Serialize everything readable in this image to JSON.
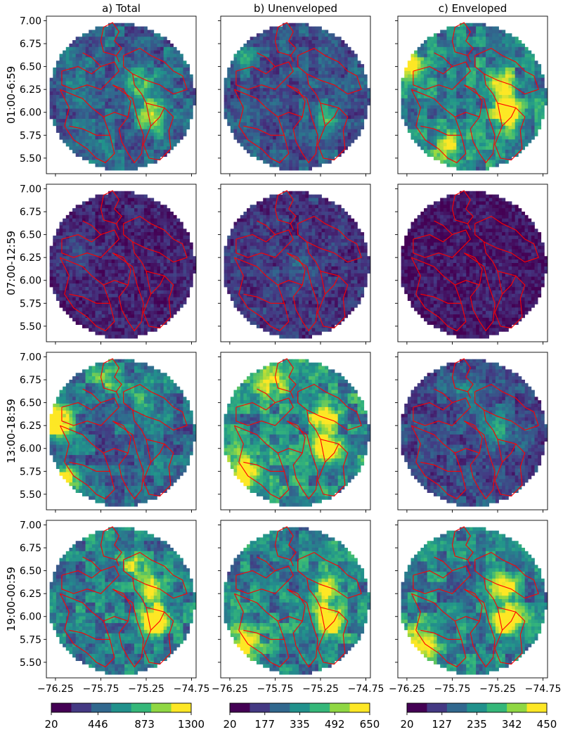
{
  "chart_data": {
    "type": "heatmap",
    "column_titles": [
      "a) Total",
      "b) Unenveloped",
      "c) Enveloped"
    ],
    "row_labels": [
      "01:00-6:59",
      "07:00-12:59",
      "13:00-18:59",
      "19:00-00:59"
    ],
    "x_ticks": [
      "−76.25",
      "−75.75",
      "−75.25",
      "−74.75"
    ],
    "x_tick_values": [
      -76.25,
      -75.75,
      -75.25,
      -74.75
    ],
    "y_ticks": [
      "7.00",
      "6.75",
      "6.50",
      "6.25",
      "6.00",
      "5.75",
      "5.50"
    ],
    "y_tick_values": [
      7.0,
      6.75,
      6.5,
      6.25,
      6.0,
      5.75,
      5.5
    ],
    "xlim": [
      -76.35,
      -74.7
    ],
    "ylim": [
      5.33,
      7.05
    ],
    "radar_center": [
      -75.52,
      6.17
    ],
    "colormap": [
      "#440154",
      "#443983",
      "#31688e",
      "#21918c",
      "#35b779",
      "#90d743",
      "#fde725"
    ],
    "boundary_color": "#ff0000",
    "colorbars": [
      {
        "ticks": [
          "20",
          "446",
          "873",
          "1300"
        ],
        "vmin": 20,
        "vmax": 1300
      },
      {
        "ticks": [
          "20",
          "177",
          "335",
          "492",
          "650"
        ],
        "vmin": 20,
        "vmax": 650
      },
      {
        "ticks": [
          "20",
          "127",
          "235",
          "342",
          "450"
        ],
        "vmin": 20,
        "vmax": 450
      }
    ],
    "panel_level": [
      [
        0.32,
        0.26,
        0.45
      ],
      [
        0.1,
        0.16,
        0.06
      ],
      [
        0.34,
        0.48,
        0.22
      ],
      [
        0.42,
        0.44,
        0.44
      ]
    ],
    "hotspots": [
      [
        [
          [
            -75.18,
            5.95,
            0.25,
            0.6
          ],
          [
            -75.3,
            6.3,
            0.25,
            0.4
          ]
        ],
        [
          [
            -75.18,
            5.95,
            0.2,
            0.4
          ],
          [
            -76.1,
            6.6,
            0.2,
            0.3
          ]
        ],
        [
          [
            -75.15,
            6.0,
            0.22,
            1.0
          ],
          [
            -75.2,
            6.3,
            0.2,
            0.7
          ],
          [
            -76.2,
            6.5,
            0.2,
            0.6
          ],
          [
            -75.8,
            5.6,
            0.25,
            0.5
          ]
        ]
      ],
      [
        [
          [
            -76.0,
            6.3,
            0.3,
            0.15
          ]
        ],
        [
          [
            -75.5,
            6.1,
            0.3,
            0.15
          ]
        ],
        [
          [
            -75.3,
            5.8,
            0.3,
            0.05
          ]
        ]
      ],
      [
        [
          [
            -76.25,
            6.3,
            0.25,
            1.0
          ],
          [
            -76.15,
            5.65,
            0.2,
            1.0
          ],
          [
            -75.7,
            6.8,
            0.25,
            0.5
          ],
          [
            -75.25,
            6.6,
            0.3,
            0.3
          ]
        ],
        [
          [
            -75.18,
            6.0,
            0.22,
            1.0
          ],
          [
            -75.2,
            6.35,
            0.2,
            0.8
          ],
          [
            -76.1,
            5.75,
            0.3,
            0.7
          ],
          [
            -75.8,
            6.7,
            0.3,
            0.4
          ]
        ],
        [
          [
            -75.25,
            6.2,
            0.3,
            0.3
          ],
          [
            -75.6,
            6.6,
            0.3,
            0.2
          ]
        ]
      ],
      [
        [
          [
            -75.15,
            5.95,
            0.22,
            1.0
          ],
          [
            -75.18,
            6.3,
            0.2,
            0.8
          ],
          [
            -75.4,
            6.55,
            0.2,
            0.5
          ]
        ],
        [
          [
            -75.15,
            5.95,
            0.22,
            1.0
          ],
          [
            -75.18,
            6.3,
            0.2,
            0.8
          ],
          [
            -76.1,
            5.7,
            0.3,
            0.6
          ]
        ],
        [
          [
            -75.15,
            5.95,
            0.22,
            1.0
          ],
          [
            -75.18,
            6.3,
            0.2,
            0.8
          ],
          [
            -76.1,
            5.7,
            0.3,
            0.6
          ]
        ]
      ]
    ]
  }
}
